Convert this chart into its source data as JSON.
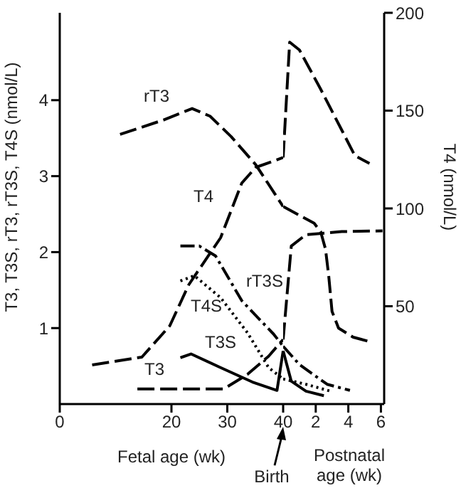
{
  "chart_data": [
    {
      "type": "line",
      "xlabel": "Fetal age (wk)",
      "ylabel": "T3, T3S, rT3, rT3S, T4S (nmol/L)",
      "xlim": [
        0,
        40
      ],
      "xticks": [
        0,
        20,
        30,
        40
      ],
      "ylim": [
        0,
        5.15
      ],
      "yticks": [
        1,
        2,
        3,
        4
      ],
      "y2lim": [
        0,
        200
      ],
      "marker": "none",
      "annotations": [
        "Birth"
      ],
      "series": [
        {
          "name": "rT3",
          "color": "#000000",
          "line_style": "dashed",
          "x": [
            10.8,
            18.6,
            23.7,
            26.9,
            30.7,
            35.1,
            40
          ],
          "values": [
            3.55,
            3.74,
            3.89,
            3.79,
            3.52,
            3.15,
            2.6
          ]
        },
        {
          "name": "T4",
          "color": "#000000",
          "line_style": "dashed",
          "axis": "y2",
          "x": [
            5.8,
            14.7,
            19.7,
            23.1,
            28.8,
            32.6,
            35.1,
            40
          ],
          "values": [
            20,
            24,
            40,
            61,
            85,
            113,
            121,
            126
          ]
        },
        {
          "name": "T3",
          "color": "#000000",
          "line_style": "dashed",
          "x": [
            13.9,
            29.4,
            33.6,
            37.4,
            40
          ],
          "values": [
            0.2,
            0.2,
            0.39,
            0.63,
            0.85
          ]
        },
        {
          "name": "T3S",
          "color": "#000000",
          "line_style": "solid",
          "x": [
            21.6,
            23.5,
            28.8,
            34.5,
            38.9,
            40
          ],
          "values": [
            0.61,
            0.66,
            0.48,
            0.29,
            0.18,
            0.7
          ]
        },
        {
          "name": "T4S",
          "color": "#000000",
          "line_style": "dotted",
          "x": [
            21.6,
            24.1,
            28.8,
            33.6,
            37.4,
            40
          ],
          "values": [
            1.62,
            1.69,
            1.4,
            0.94,
            0.48,
            0.33
          ]
        },
        {
          "name": "rT3S",
          "color": "#000000",
          "line_style": "dashdot",
          "x": [
            21.6,
            25.0,
            27.9,
            32.6,
            38.3,
            40
          ],
          "values": [
            2.08,
            2.08,
            1.95,
            1.36,
            0.92,
            0.76
          ]
        }
      ]
    },
    {
      "type": "line",
      "xlabel": "Postnatal age (wk)",
      "y2label": "T4 (nmol/L)",
      "xlim": [
        0,
        6.2
      ],
      "xticks": [
        2,
        4,
        6
      ],
      "ylim": [
        0,
        5.15
      ],
      "y2lim": [
        0,
        200
      ],
      "y2ticks": [
        50,
        100,
        150,
        200
      ],
      "marker": "none",
      "series": [
        {
          "color": "#000000",
          "line_style": "dashed",
          "x": [
            0,
            1.9,
            2.3,
            2.6,
            2.8,
            3.0,
            3.4,
            4.3,
            5.5
          ],
          "values": [
            2.6,
            2.38,
            2.27,
            2.04,
            1.68,
            1.22,
            1.0,
            0.88,
            0.81
          ]
        },
        {
          "color": "#000000",
          "line_style": "dashed",
          "axis": "y2",
          "x": [
            0,
            0.4,
            1.0,
            2.3,
            3.6,
            4.4,
            5.3
          ],
          "values": [
            126,
            185,
            181,
            161,
            140,
            127,
            123
          ]
        },
        {
          "color": "#000000",
          "line_style": "dashed",
          "x": [
            0,
            0.5,
            1.4,
            3.6,
            6.1
          ],
          "values": [
            0.85,
            2.08,
            2.23,
            2.27,
            2.28
          ]
        },
        {
          "color": "#000000",
          "line_style": "solid",
          "x": [
            0,
            0.5,
            1.4,
            2.5
          ],
          "values": [
            0.7,
            0.3,
            0.17,
            0.11
          ]
        },
        {
          "color": "#000000",
          "line_style": "dotted",
          "x": [
            0,
            1.4,
            2.9
          ],
          "values": [
            0.33,
            0.26,
            0.17
          ]
        },
        {
          "color": "#000000",
          "line_style": "dashdot",
          "x": [
            0,
            1.0,
            2.7,
            4.1
          ],
          "values": [
            0.76,
            0.52,
            0.26,
            0.18
          ]
        }
      ]
    }
  ]
}
